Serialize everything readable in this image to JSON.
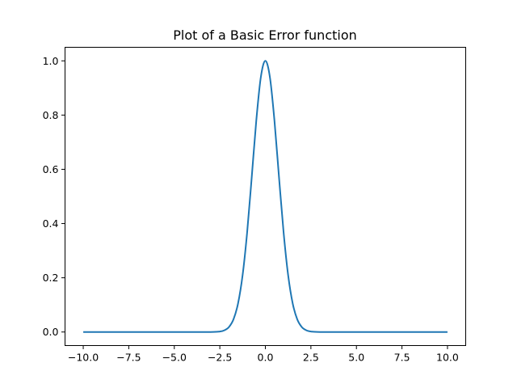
{
  "chart_data": {
    "type": "line",
    "title": "Plot of a Basic Error function",
    "xlabel": "",
    "ylabel": "",
    "xlim": [
      -11.0,
      11.0
    ],
    "ylim": [
      -0.05,
      1.05
    ],
    "x_ticks": [
      -10.0,
      -7.5,
      -5.0,
      -2.5,
      0.0,
      2.5,
      5.0,
      7.5,
      10.0
    ],
    "x_tick_labels": [
      "−10.0",
      "−7.5",
      "−5.0",
      "−2.5",
      "0.0",
      "2.5",
      "5.0",
      "7.5",
      "10.0"
    ],
    "y_ticks": [
      0.0,
      0.2,
      0.4,
      0.6,
      0.8,
      1.0
    ],
    "y_tick_labels": [
      "0.0",
      "0.2",
      "0.4",
      "0.6",
      "0.8",
      "1.0"
    ],
    "grid": false,
    "series": [
      {
        "color": "#1f77b4",
        "x": [
          -10.0,
          -5.0,
          -3.0,
          -2.5,
          -2.25,
          -2.0,
          -1.75,
          -1.5,
          -1.25,
          -1.0,
          -0.75,
          -0.5,
          -0.25,
          0.0,
          0.25,
          0.5,
          0.75,
          1.0,
          1.25,
          1.5,
          1.75,
          2.0,
          2.25,
          2.5,
          3.0,
          5.0,
          10.0
        ],
        "values": [
          0.0,
          0.0,
          0.0001,
          0.0019,
          0.0063,
          0.0183,
          0.0468,
          0.1054,
          0.2096,
          0.3679,
          0.5698,
          0.7788,
          0.9394,
          1.0,
          0.9394,
          0.7788,
          0.5698,
          0.3679,
          0.2096,
          0.1054,
          0.0468,
          0.0183,
          0.0063,
          0.0019,
          0.0001,
          0.0,
          0.0
        ]
      }
    ]
  }
}
